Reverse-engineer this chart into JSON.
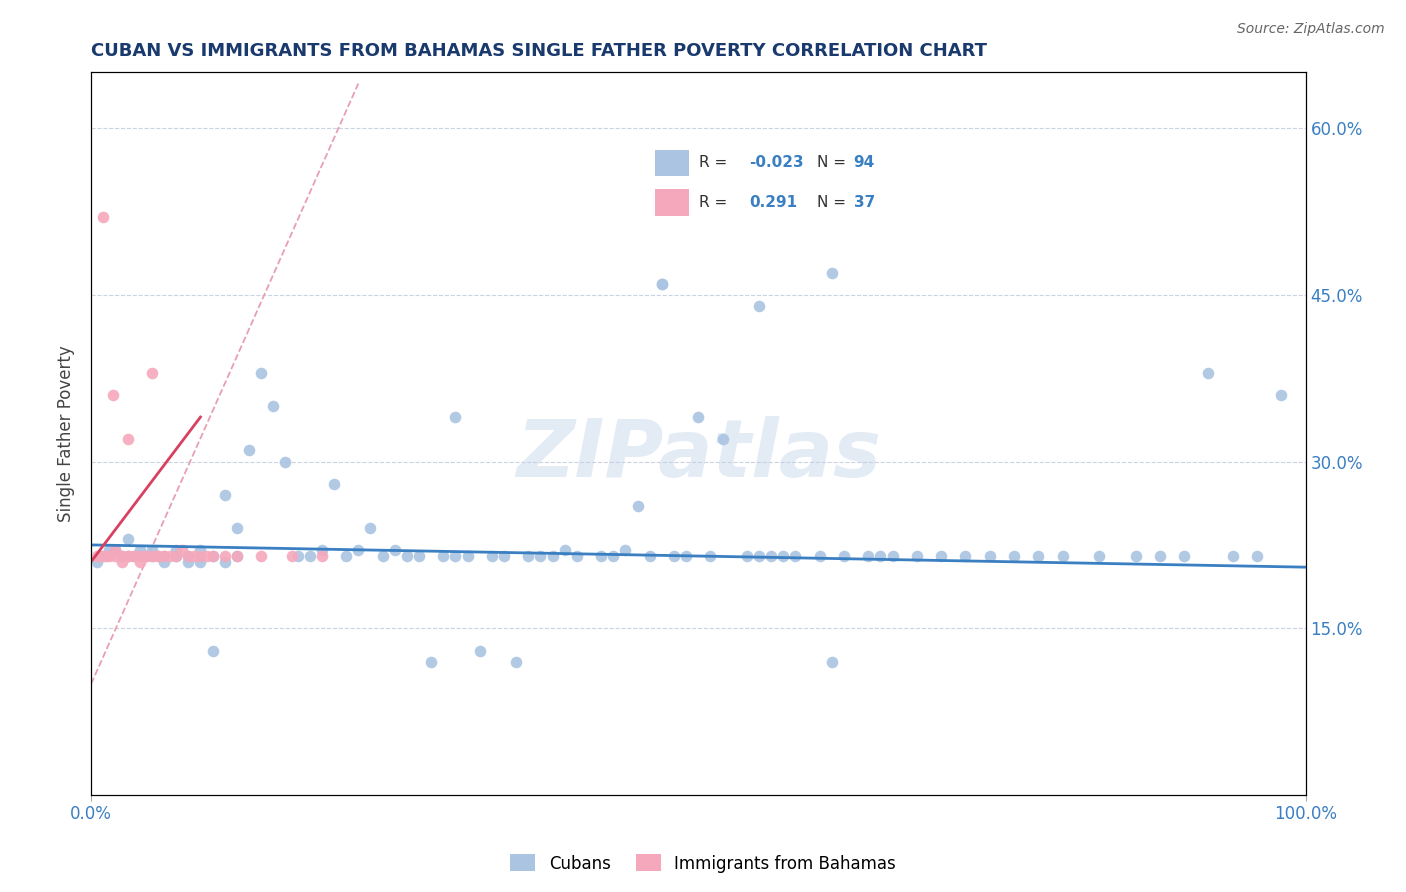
{
  "title": "CUBAN VS IMMIGRANTS FROM BAHAMAS SINGLE FATHER POVERTY CORRELATION CHART",
  "source": "Source: ZipAtlas.com",
  "ylabel_label": "Single Father Poverty",
  "x_min": 0.0,
  "x_max": 1.0,
  "y_min": 0.0,
  "y_max": 0.65,
  "y_ticks": [
    0.15,
    0.3,
    0.45,
    0.6
  ],
  "y_tick_labels": [
    "15.0%",
    "30.0%",
    "45.0%",
    "60.0%"
  ],
  "cubans_R": -0.023,
  "cubans_N": 94,
  "bahamas_R": 0.291,
  "bahamas_N": 37,
  "cubans_color": "#aac4e2",
  "bahamas_color": "#f5a8bb",
  "cubans_line_color": "#3a7fc1",
  "bahamas_line_color": "#d94060",
  "ref_line_color": "#e8a0b0",
  "watermark": "ZIPatlas",
  "cubans_x": [
    0.005,
    0.01,
    0.015,
    0.02,
    0.025,
    0.03,
    0.03,
    0.04,
    0.04,
    0.05,
    0.05,
    0.06,
    0.06,
    0.07,
    0.07,
    0.08,
    0.08,
    0.09,
    0.09,
    0.1,
    0.1,
    0.11,
    0.11,
    0.12,
    0.12,
    0.13,
    0.14,
    0.15,
    0.16,
    0.17,
    0.18,
    0.19,
    0.2,
    0.21,
    0.22,
    0.23,
    0.24,
    0.25,
    0.26,
    0.27,
    0.28,
    0.29,
    0.3,
    0.31,
    0.32,
    0.33,
    0.34,
    0.35,
    0.36,
    0.37,
    0.38,
    0.39,
    0.4,
    0.42,
    0.43,
    0.44,
    0.45,
    0.46,
    0.47,
    0.48,
    0.49,
    0.5,
    0.51,
    0.52,
    0.54,
    0.55,
    0.56,
    0.57,
    0.58,
    0.6,
    0.61,
    0.62,
    0.64,
    0.65,
    0.66,
    0.68,
    0.7,
    0.72,
    0.74,
    0.76,
    0.78,
    0.8,
    0.83,
    0.86,
    0.88,
    0.9,
    0.92,
    0.94,
    0.96,
    0.98,
    0.3,
    0.47,
    0.55,
    0.61
  ],
  "cubans_y": [
    0.21,
    0.215,
    0.22,
    0.22,
    0.215,
    0.23,
    0.215,
    0.22,
    0.215,
    0.22,
    0.215,
    0.215,
    0.21,
    0.22,
    0.215,
    0.215,
    0.21,
    0.22,
    0.21,
    0.215,
    0.13,
    0.27,
    0.21,
    0.24,
    0.215,
    0.31,
    0.38,
    0.35,
    0.3,
    0.215,
    0.215,
    0.22,
    0.28,
    0.215,
    0.22,
    0.24,
    0.215,
    0.22,
    0.215,
    0.215,
    0.12,
    0.215,
    0.34,
    0.215,
    0.13,
    0.215,
    0.215,
    0.12,
    0.215,
    0.215,
    0.215,
    0.22,
    0.215,
    0.215,
    0.215,
    0.22,
    0.26,
    0.215,
    0.46,
    0.215,
    0.215,
    0.34,
    0.215,
    0.32,
    0.215,
    0.215,
    0.215,
    0.215,
    0.215,
    0.215,
    0.12,
    0.215,
    0.215,
    0.215,
    0.215,
    0.215,
    0.215,
    0.215,
    0.215,
    0.215,
    0.215,
    0.215,
    0.215,
    0.215,
    0.215,
    0.215,
    0.38,
    0.215,
    0.215,
    0.36,
    0.215,
    0.46,
    0.44,
    0.47
  ],
  "bahamas_x": [
    0.005,
    0.008,
    0.01,
    0.012,
    0.015,
    0.018,
    0.02,
    0.02,
    0.025,
    0.025,
    0.03,
    0.03,
    0.03,
    0.035,
    0.035,
    0.04,
    0.04,
    0.045,
    0.045,
    0.05,
    0.05,
    0.055,
    0.055,
    0.06,
    0.065,
    0.07,
    0.075,
    0.08,
    0.085,
    0.09,
    0.095,
    0.1,
    0.11,
    0.12,
    0.14,
    0.165,
    0.19
  ],
  "bahamas_y": [
    0.215,
    0.215,
    0.52,
    0.215,
    0.215,
    0.36,
    0.215,
    0.22,
    0.215,
    0.21,
    0.32,
    0.215,
    0.215,
    0.215,
    0.215,
    0.215,
    0.21,
    0.215,
    0.215,
    0.215,
    0.38,
    0.215,
    0.215,
    0.215,
    0.215,
    0.215,
    0.22,
    0.215,
    0.215,
    0.215,
    0.215,
    0.215,
    0.215,
    0.215,
    0.215,
    0.215,
    0.215
  ],
  "cubans_trend_x": [
    0.0,
    1.0
  ],
  "cubans_trend_y": [
    0.225,
    0.205
  ],
  "bahamas_trend_x": [
    0.0,
    0.09
  ],
  "bahamas_trend_y": [
    0.21,
    0.34
  ],
  "ref_line_x": [
    0.0,
    0.22
  ],
  "ref_line_y": [
    0.1,
    0.64
  ]
}
